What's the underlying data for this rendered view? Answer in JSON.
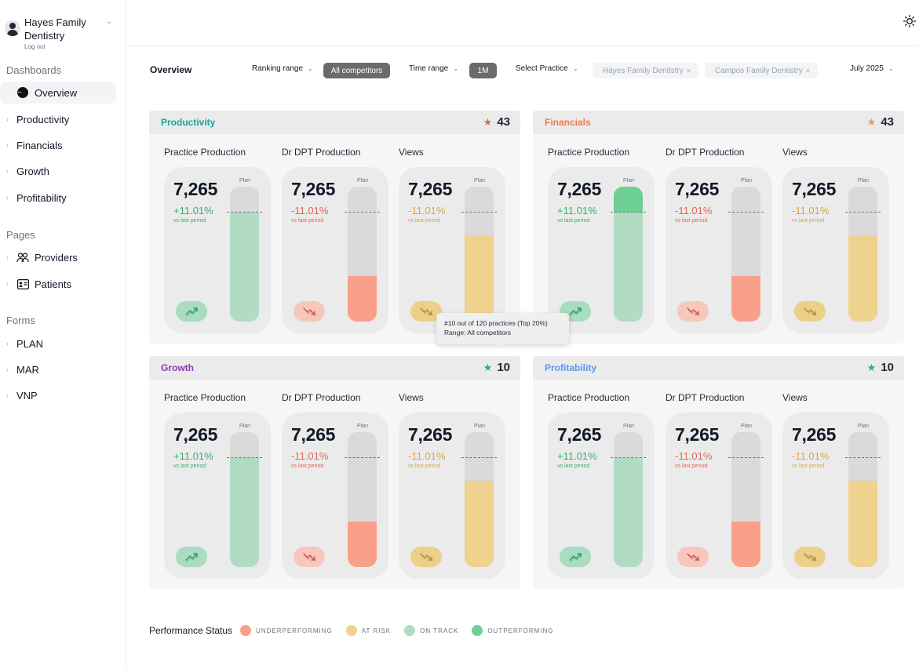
{
  "account": {
    "name": "Hayes Family Dentistry",
    "logout": "Log out"
  },
  "sidebar": {
    "dashboards_label": "Dashboards",
    "dashboards": [
      {
        "label": "Overview",
        "active": true
      },
      {
        "label": "Productivity"
      },
      {
        "label": "Financials"
      },
      {
        "label": "Growth"
      },
      {
        "label": "Profitability"
      }
    ],
    "pages_label": "Pages",
    "pages": [
      {
        "label": "Providers",
        "icon": "users-icon"
      },
      {
        "label": "Patients",
        "icon": "id-card-icon"
      }
    ],
    "forms_label": "Forms",
    "forms": [
      {
        "label": "PLAN"
      },
      {
        "label": "MAR"
      },
      {
        "label": "VNP"
      }
    ]
  },
  "header": {
    "title": "Overview",
    "ranking_range_label": "Ranking range",
    "ranking_range_value": "All competitors",
    "time_range_label": "Time range",
    "time_range_value": "1M",
    "select_practice_label": "Select Practice",
    "practices": [
      "Hayes Family Dentistry",
      "Campos Family Dentistry"
    ],
    "date_value": "July 2025"
  },
  "colors": {
    "underperforming": "#f9a08a",
    "at_risk": "#efd28e",
    "on_track": "#b1dcc3",
    "outperforming": "#6dcf94",
    "green_text": "#2fb36b",
    "red_text": "#e0665a",
    "yellow_text": "#d9a742",
    "productivity": "#16a394",
    "financials": "#ef7b4d",
    "growth": "#8e3bb0",
    "profitability": "#5d95e8"
  },
  "panels": [
    {
      "title": "Productivity",
      "score": "43",
      "title_color": "#16a394",
      "star_color": "#e0665a",
      "metrics": [
        {
          "label": "Practice Production",
          "value": "7,265",
          "pct": "+11.01%",
          "sub": "vs last period",
          "status": "on_track",
          "level": 0.81,
          "overflow": 0
        },
        {
          "label": "Dr DPT Production",
          "value": "7,265",
          "pct": "-11.01%",
          "sub": "vs last period",
          "status": "underperforming",
          "level": 0.34,
          "overflow": 0
        },
        {
          "label": "Views",
          "value": "7,265",
          "pct": "-11.01%",
          "sub": "vs last period",
          "status": "at_risk",
          "level": 0.64,
          "overflow": 0
        }
      ]
    },
    {
      "title": "Financials",
      "score": "43",
      "title_color": "#ef7b4d",
      "star_color": "#d9a742",
      "metrics": [
        {
          "label": "Practice Production",
          "value": "7,265",
          "pct": "+11.01%",
          "sub": "vs last period",
          "status": "on_track",
          "level": 0.81,
          "overflow": 1
        },
        {
          "label": "Dr DPT Production",
          "value": "7,265",
          "pct": "-11.01%",
          "sub": "vs last period",
          "status": "underperforming",
          "level": 0.34,
          "overflow": 0
        },
        {
          "label": "Views",
          "value": "7,265",
          "pct": "-11.01%",
          "sub": "vs last period",
          "status": "at_risk",
          "level": 0.64,
          "overflow": 0
        }
      ]
    },
    {
      "title": "Growth",
      "score": "10",
      "title_color": "#8e3bb0",
      "star_color": "#2fb36b",
      "metrics": [
        {
          "label": "Practice Production",
          "value": "7,265",
          "pct": "+11.01%",
          "sub": "vs last period",
          "status": "on_track",
          "level": 0.81,
          "overflow": 0
        },
        {
          "label": "Dr DPT Production",
          "value": "7,265",
          "pct": "-11.01%",
          "sub": "vs last period",
          "status": "underperforming",
          "level": 0.34,
          "overflow": 0
        },
        {
          "label": "Views",
          "value": "7,265",
          "pct": "-11.01%",
          "sub": "vs last period",
          "status": "at_risk",
          "level": 0.64,
          "overflow": 0
        }
      ]
    },
    {
      "title": "Profitability",
      "score": "10",
      "title_color": "#5d95e8",
      "star_color": "#2fb36b",
      "metrics": [
        {
          "label": "Practice Production",
          "value": "7,265",
          "pct": "+11.01%",
          "sub": "vs last period",
          "status": "on_track",
          "level": 0.81,
          "overflow": 0
        },
        {
          "label": "Dr DPT Production",
          "value": "7,265",
          "pct": "-11.01%",
          "sub": "vs last period",
          "status": "underperforming",
          "level": 0.34,
          "overflow": 0
        },
        {
          "label": "Views",
          "value": "7,265",
          "pct": "-11.01%",
          "sub": "vs last period",
          "status": "at_risk",
          "level": 0.64,
          "overflow": 0
        }
      ]
    }
  ],
  "tooltip": {
    "line1": "#10 out of 120 practices (Top 20%)",
    "line2": "Range: All competitors"
  },
  "legend": {
    "title": "Performance Status",
    "items": [
      {
        "label": "UNDERPERFORMING",
        "status": "underperforming"
      },
      {
        "label": "AT RISK",
        "status": "at_risk"
      },
      {
        "label": "ON TRACK",
        "status": "on_track"
      },
      {
        "label": "OUTPERFORMING",
        "status": "outperforming"
      }
    ]
  }
}
